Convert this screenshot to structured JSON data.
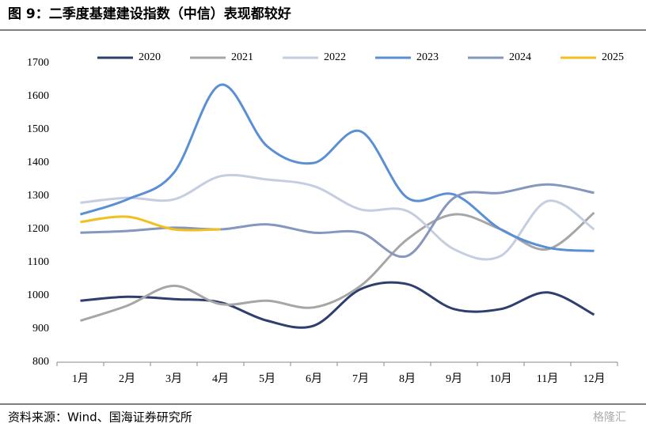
{
  "chart_data": {
    "type": "line",
    "title": "图 9：二季度基建建设指数（中信）表现都较好",
    "source": "资料来源：Wind、国海证券研究所",
    "watermark": "格隆汇",
    "categories": [
      "1月",
      "2月",
      "3月",
      "4月",
      "5月",
      "6月",
      "7月",
      "8月",
      "9月",
      "10月",
      "11月",
      "12月"
    ],
    "series": [
      {
        "name": "2020",
        "color": "#2e3f6e",
        "values": [
          985,
          997,
          990,
          980,
          925,
          910,
          1020,
          1035,
          960,
          960,
          1010,
          943
        ]
      },
      {
        "name": "2021",
        "color": "#a6a6a6",
        "values": [
          925,
          970,
          1030,
          975,
          985,
          965,
          1030,
          1170,
          1245,
          1200,
          1140,
          1250
        ]
      },
      {
        "name": "2022",
        "color": "#c5cde0",
        "values": [
          1280,
          1295,
          1290,
          1360,
          1350,
          1330,
          1260,
          1255,
          1140,
          1120,
          1285,
          1200
        ]
      },
      {
        "name": "2023",
        "color": "#5b8fd4",
        "values": [
          1245,
          1290,
          1370,
          1635,
          1450,
          1400,
          1495,
          1295,
          1305,
          1200,
          1145,
          1135
        ]
      },
      {
        "name": "2024",
        "color": "#8497bd",
        "values": [
          1190,
          1195,
          1205,
          1200,
          1215,
          1190,
          1190,
          1120,
          1295,
          1310,
          1335,
          1310
        ]
      },
      {
        "name": "2025",
        "color": "#f2c01e",
        "values": [
          1222,
          1238,
          1200,
          1200,
          null,
          null,
          null,
          null,
          null,
          null,
          null,
          null
        ]
      }
    ],
    "ylim": [
      800,
      1700
    ],
    "yticks": [
      800,
      900,
      1000,
      1100,
      1200,
      1300,
      1400,
      1500,
      1600,
      1700
    ],
    "grid": false,
    "legend": "top"
  }
}
